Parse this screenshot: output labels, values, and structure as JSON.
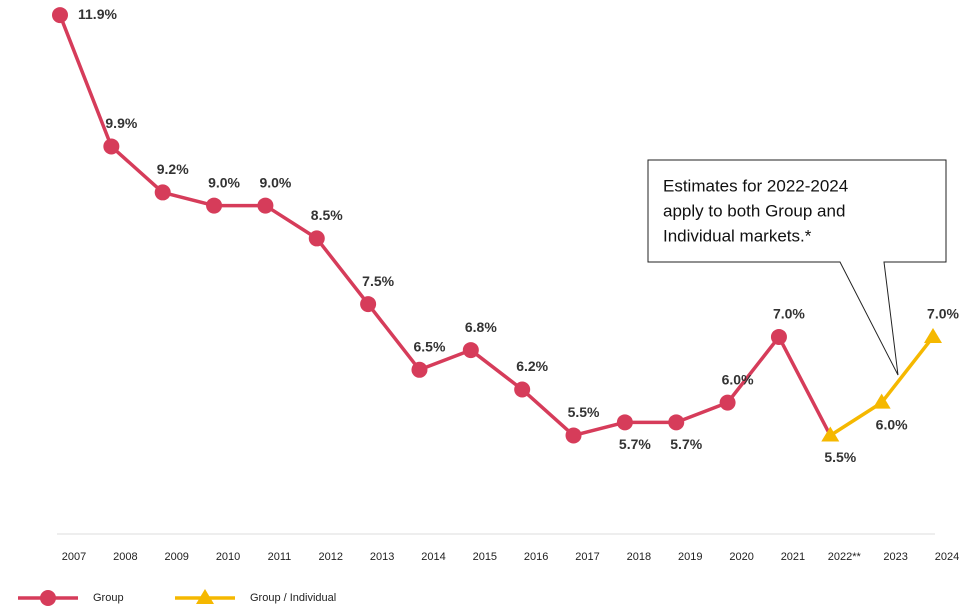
{
  "chart_data": {
    "type": "line",
    "categories": [
      "2007",
      "2008",
      "2009",
      "2010",
      "2011",
      "2012",
      "2013",
      "2014",
      "2015",
      "2016",
      "2017",
      "2018",
      "2019",
      "2020",
      "2021",
      "2022**",
      "2023",
      "2024"
    ],
    "series": [
      {
        "name": "Group",
        "color": "#d63c5a",
        "marker": "circle",
        "values": [
          11.9,
          9.9,
          9.2,
          9.0,
          9.0,
          8.5,
          7.5,
          6.5,
          6.8,
          6.2,
          5.5,
          5.7,
          5.7,
          6.0,
          7.0,
          5.5,
          null,
          null
        ],
        "value_labels": [
          "11.9%",
          "9.9%",
          "9.2%",
          "9.0%",
          "9.0%",
          "8.5%",
          "7.5%",
          "6.5%",
          "6.8%",
          "6.2%",
          "5.5%",
          "5.7%",
          "5.7%",
          "6.0%",
          "7.0%",
          null,
          null,
          null
        ]
      },
      {
        "name": "Group / Individual",
        "color": "#f5b800",
        "marker": "triangle",
        "values": [
          null,
          null,
          null,
          null,
          null,
          null,
          null,
          null,
          null,
          null,
          null,
          null,
          null,
          null,
          null,
          5.5,
          6.0,
          7.0
        ],
        "value_labels": [
          null,
          null,
          null,
          null,
          null,
          null,
          null,
          null,
          null,
          null,
          null,
          null,
          null,
          null,
          null,
          "5.5%",
          "6.0%",
          "7.0%"
        ]
      }
    ],
    "ylim": [
      4,
      12
    ],
    "annotation": [
      "Estimates for 2022-2024",
      "apply to both Group and",
      "Individual markets.*"
    ]
  }
}
